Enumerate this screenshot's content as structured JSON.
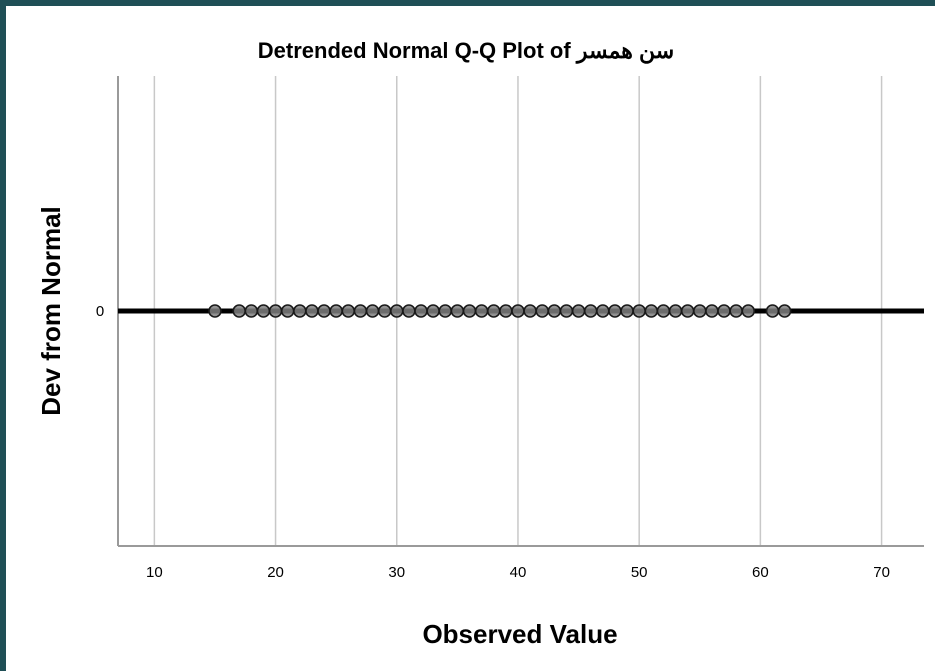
{
  "chart_data": {
    "type": "scatter",
    "title": "Detrended Normal Q-Q Plot of سن همسر",
    "xlabel": "Observed Value",
    "ylabel": "Dev from Normal",
    "xlim": [
      7,
      73.5
    ],
    "ylim": [
      -1,
      1
    ],
    "x_ticks": [
      10,
      20,
      30,
      40,
      50,
      60,
      70
    ],
    "y_ticks": [
      0
    ],
    "grid": "vertical",
    "reference_line_y": 0,
    "series": [
      {
        "x": [
          15,
          17,
          18,
          19,
          20,
          21,
          22,
          23,
          24,
          25,
          26,
          27,
          28,
          29,
          30,
          31,
          32,
          33,
          34,
          35,
          36,
          37,
          38,
          39,
          40,
          41,
          42,
          43,
          44,
          45,
          46,
          47,
          48,
          49,
          50,
          51,
          52,
          53,
          54,
          55,
          56,
          57,
          58,
          59,
          61,
          62
        ],
        "y": [
          0,
          0,
          0,
          0,
          0,
          0,
          0,
          0,
          0,
          0,
          0,
          0,
          0,
          0,
          0,
          0,
          0,
          0,
          0,
          0,
          0,
          0,
          0,
          0,
          0,
          0,
          0,
          0,
          0,
          0,
          0,
          0,
          0,
          0,
          0,
          0,
          0,
          0,
          0,
          0,
          0,
          0,
          0,
          0,
          0,
          0
        ]
      }
    ]
  }
}
